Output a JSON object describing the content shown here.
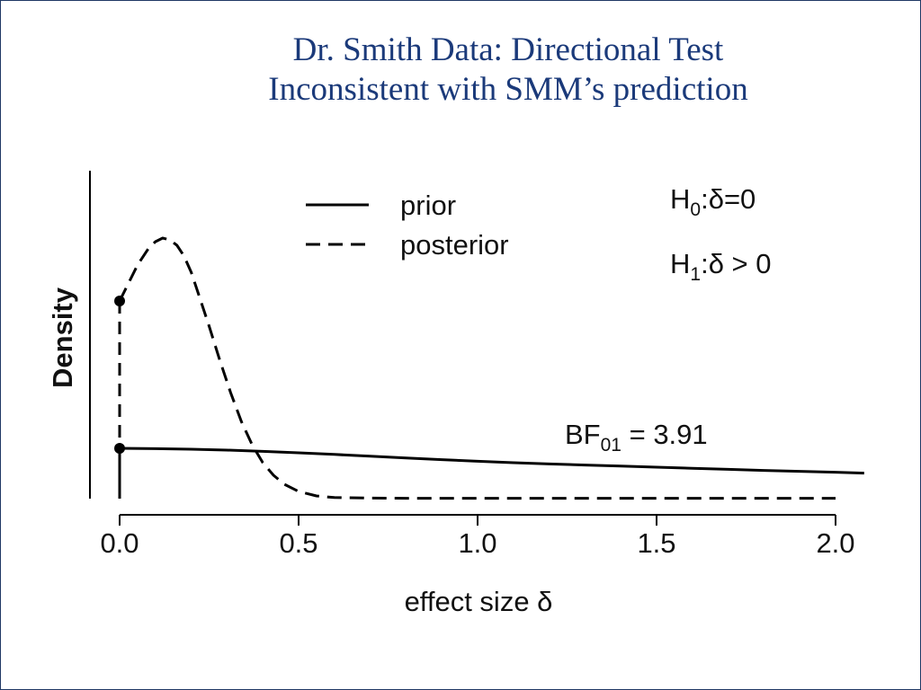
{
  "slide": {
    "title_line1": "Dr. Smith Data: Directional Test",
    "title_line2": "Inconsistent with SMM’s prediction"
  },
  "chart_data": {
    "type": "line",
    "xlabel": "effect size δ",
    "ylabel": "Density",
    "xlim": [
      0,
      2.08
    ],
    "x_ticks": [
      0,
      0.5,
      1,
      1.5,
      2
    ],
    "x_tick_labels": [
      "0.0",
      "0.5",
      "1.0",
      "1.5",
      "2.0"
    ],
    "grid": false,
    "legend_position": "top-center",
    "series": [
      {
        "name": "prior",
        "style": "solid",
        "color": "#000000",
        "x": [
          0,
          0.1,
          0.2,
          0.3,
          0.4,
          0.5,
          0.6,
          0.7,
          0.8,
          0.9,
          1.0,
          1.1,
          1.2,
          1.3,
          1.4,
          1.5,
          1.6,
          1.7,
          1.8,
          1.9,
          2.0,
          2.08
        ],
        "y": [
          0.28,
          0.278,
          0.275,
          0.27,
          0.263,
          0.255,
          0.246,
          0.236,
          0.226,
          0.217,
          0.208,
          0.2,
          0.193,
          0.187,
          0.181,
          0.175,
          0.169,
          0.163,
          0.157,
          0.152,
          0.147,
          0.142
        ]
      },
      {
        "name": "posterior",
        "style": "dashed",
        "color": "#000000",
        "x": [
          0,
          0.02,
          0.05,
          0.08,
          0.1,
          0.12,
          0.14,
          0.16,
          0.18,
          0.2,
          0.22,
          0.25,
          0.28,
          0.31,
          0.34,
          0.37,
          0.4,
          0.43,
          0.46,
          0.5,
          0.55,
          0.6,
          0.7,
          0.8,
          1.0,
          1.5,
          2.0
        ],
        "y": [
          1.1,
          1.18,
          1.3,
          1.39,
          1.43,
          1.45,
          1.44,
          1.41,
          1.35,
          1.26,
          1.14,
          0.96,
          0.77,
          0.59,
          0.43,
          0.3,
          0.2,
          0.13,
          0.08,
          0.04,
          0.015,
          0.006,
          0.003,
          0.002,
          0.002,
          0.002,
          0.002
        ]
      }
    ],
    "points": [
      {
        "x": 0,
        "y": 1.1,
        "series": "posterior"
      },
      {
        "x": 0,
        "y": 0.28,
        "series": "prior"
      }
    ],
    "annotations": {
      "h0": "H0:δ=0",
      "h1": "H1:δ > 0",
      "bf": "BF01 = 3.91"
    }
  }
}
